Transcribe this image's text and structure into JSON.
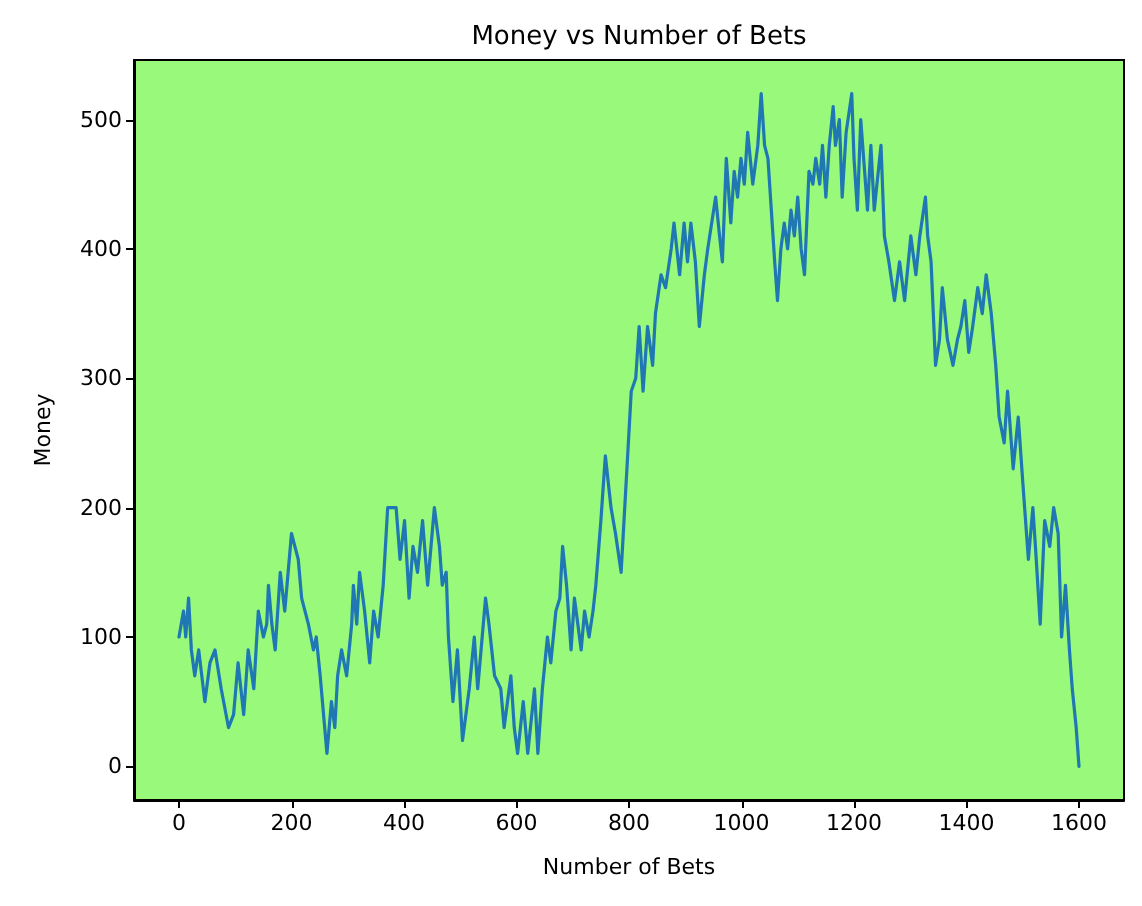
{
  "chart_data": {
    "type": "line",
    "title": "Money vs Number of Bets",
    "xlabel": "Number of Bets",
    "ylabel": "Money",
    "x": [
      0,
      8,
      12,
      17,
      22,
      28,
      35,
      46,
      55,
      64,
      75,
      88,
      97,
      105,
      115,
      123,
      133,
      141,
      150,
      156,
      159,
      165,
      171,
      180,
      188,
      200,
      212,
      218,
      230,
      239,
      244,
      251,
      263,
      271,
      277,
      282,
      289,
      298,
      307,
      310,
      316,
      321,
      330,
      339,
      346,
      354,
      363,
      371,
      386,
      393,
      401,
      409,
      416,
      424,
      433,
      442,
      454,
      463,
      468,
      475,
      479,
      487,
      495,
      504,
      516,
      525,
      531,
      539,
      545,
      551,
      561,
      572,
      578,
      590,
      596,
      602,
      612,
      620,
      632,
      638,
      646,
      655,
      661,
      670,
      677,
      682,
      689,
      697,
      703,
      715,
      721,
      729,
      736,
      741,
      750,
      758,
      768,
      776,
      786,
      795,
      804,
      812,
      818,
      825,
      833,
      842,
      847,
      857,
      865,
      875,
      880,
      890,
      898,
      904,
      910,
      918,
      925,
      934,
      940,
      954,
      961,
      966,
      973,
      981,
      987,
      993,
      999,
      1005,
      1011,
      1020,
      1029,
      1035,
      1041,
      1047,
      1053,
      1059,
      1064,
      1070,
      1076,
      1082,
      1088,
      1094,
      1100,
      1106,
      1112,
      1120,
      1127,
      1132,
      1139,
      1144,
      1150,
      1156,
      1163,
      1167,
      1174,
      1179,
      1186,
      1196,
      1200,
      1206,
      1212,
      1224,
      1230,
      1236,
      1248,
      1254,
      1262,
      1272,
      1281,
      1290,
      1301,
      1310,
      1317,
      1327,
      1331,
      1337,
      1345,
      1352,
      1357,
      1366,
      1376,
      1384,
      1390,
      1397,
      1404,
      1411,
      1420,
      1428,
      1435,
      1444,
      1452,
      1458,
      1467,
      1473,
      1483,
      1492,
      1500,
      1510,
      1518,
      1524,
      1531,
      1539,
      1548,
      1555,
      1563,
      1569,
      1576,
      1583,
      1588,
      1595,
      1600
    ],
    "series": [
      {
        "color": "#1f77b4",
        "values": [
          100,
          120,
          100,
          130,
          90,
          70,
          90,
          50,
          80,
          90,
          60,
          30,
          40,
          80,
          40,
          90,
          60,
          120,
          100,
          110,
          140,
          110,
          90,
          150,
          120,
          180,
          160,
          130,
          110,
          90,
          100,
          70,
          10,
          50,
          30,
          70,
          90,
          70,
          110,
          140,
          110,
          150,
          120,
          80,
          120,
          100,
          140,
          200,
          200,
          160,
          190,
          130,
          170,
          150,
          190,
          140,
          200,
          170,
          140,
          150,
          100,
          50,
          90,
          20,
          60,
          100,
          60,
          100,
          130,
          110,
          70,
          60,
          30,
          70,
          30,
          10,
          50,
          10,
          60,
          10,
          60,
          100,
          80,
          120,
          130,
          170,
          140,
          90,
          130,
          90,
          120,
          100,
          120,
          140,
          190,
          240,
          200,
          180,
          150,
          220,
          290,
          300,
          340,
          290,
          340,
          310,
          350,
          380,
          370,
          400,
          420,
          380,
          420,
          390,
          420,
          390,
          340,
          380,
          400,
          440,
          410,
          390,
          470,
          420,
          460,
          440,
          470,
          450,
          490,
          450,
          480,
          520,
          480,
          470,
          430,
          390,
          360,
          400,
          420,
          400,
          430,
          410,
          440,
          400,
          380,
          460,
          450,
          470,
          450,
          480,
          440,
          480,
          510,
          480,
          500,
          440,
          490,
          520,
          470,
          430,
          500,
          430,
          480,
          430,
          480,
          410,
          390,
          360,
          390,
          360,
          410,
          380,
          410,
          440,
          410,
          390,
          310,
          330,
          370,
          330,
          310,
          330,
          340,
          360,
          320,
          340,
          370,
          350,
          380,
          350,
          310,
          270,
          250,
          290,
          230,
          270,
          220,
          160,
          200,
          160,
          110,
          190,
          170,
          200,
          180,
          100,
          140,
          90,
          60,
          30,
          0
        ]
      }
    ],
    "xlim": [
      -80,
      1680
    ],
    "ylim": [
      -26,
      546
    ],
    "xticks": [
      0,
      200,
      400,
      600,
      800,
      1000,
      1200,
      1400,
      1600
    ],
    "yticks": [
      0,
      100,
      200,
      300,
      400,
      500
    ],
    "grid": false,
    "marker": "none",
    "line_style": "solid"
  }
}
